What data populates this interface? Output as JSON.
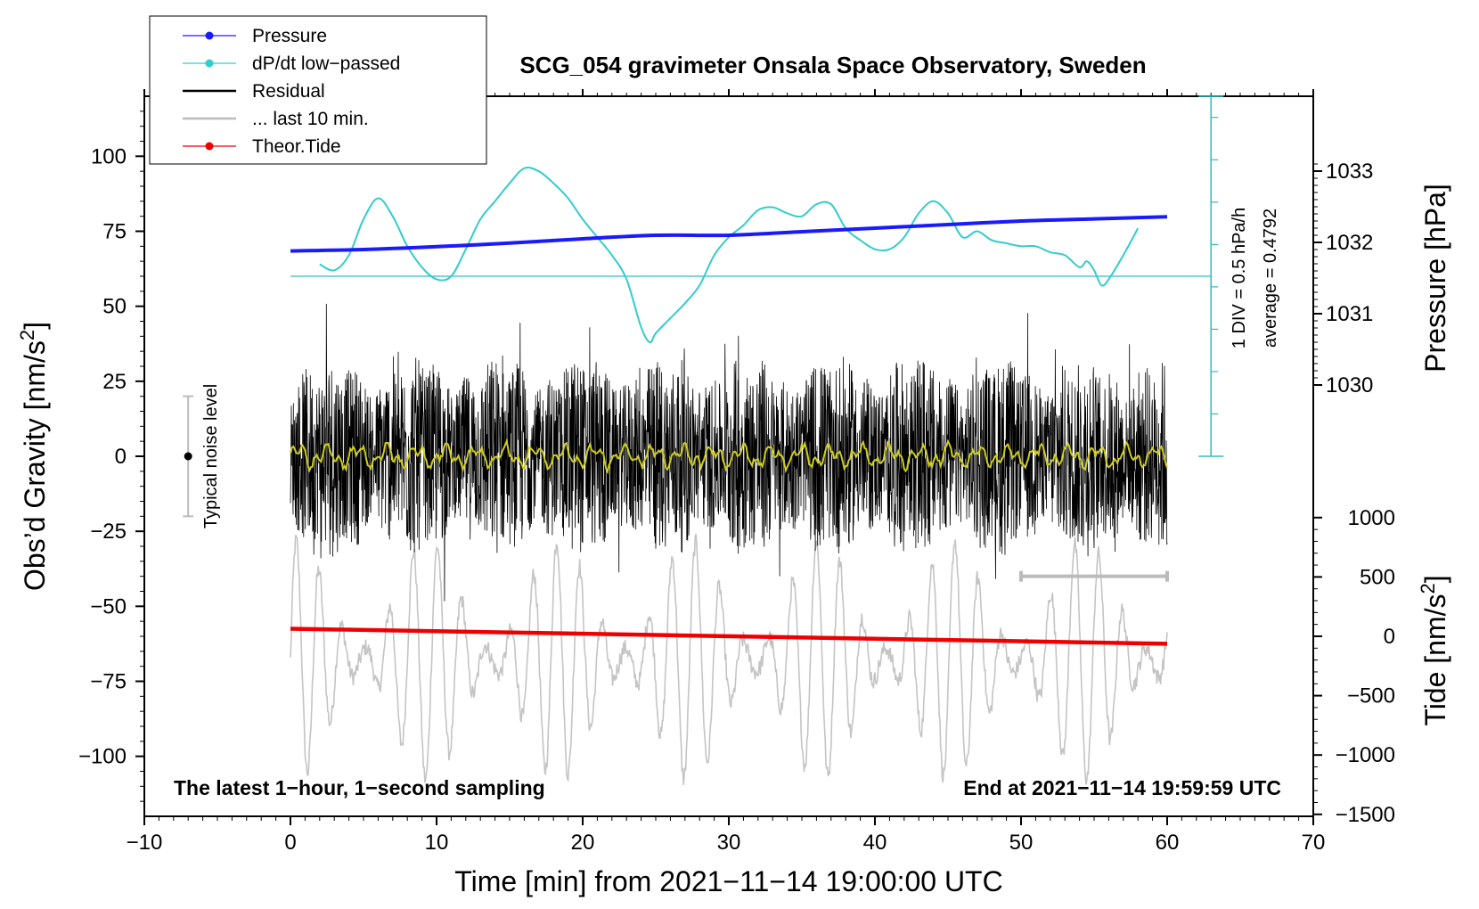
{
  "chart_data": {
    "type": "line",
    "title": "SCG_054 gravimeter Onsala Space Observatory, Sweden",
    "xlabel": "Time [min] from 2021−11−14 19:00:00 UTC",
    "ylabel_left": "Obs’d Gravity [nm/s",
    "ylabel_left_sup": "2",
    "ylabel_left_end": "]",
    "ylabel_right_pressure": "Pressure [hPa]",
    "ylabel_right_tide": "Tide [nm/s",
    "ylabel_right_tide_sup": "2",
    "ylabel_right_tide_end": "]",
    "xlim": [
      -10,
      70
    ],
    "ylim": [
      -120,
      120
    ],
    "xticks": [
      -10,
      0,
      10,
      20,
      30,
      40,
      50,
      60,
      70
    ],
    "xtick_labels": [
      "−10",
      "0",
      "10",
      "20",
      "30",
      "40",
      "50",
      "60",
      "70"
    ],
    "yticks": [
      100,
      75,
      50,
      25,
      0,
      -25,
      -50,
      -75,
      -100
    ],
    "ytick_labels": [
      "100",
      "75",
      "50",
      "25",
      "0",
      "−25",
      "−50",
      "−75",
      "−100"
    ],
    "pressure_ticks": [
      1033,
      1032,
      1031,
      1030
    ],
    "pressure_tick_labels": [
      "1033",
      "1032",
      "1031",
      "1030"
    ],
    "tide_ticks": [
      1000,
      500,
      0,
      -500,
      -1000,
      -1500
    ],
    "tide_tick_labels": [
      "1000",
      "500",
      "0",
      "−500",
      "−1000",
      "−1500"
    ],
    "legend": [
      {
        "label": "Pressure",
        "color": "#1a1aff",
        "marker": true
      },
      {
        "label": "dP/dt low−passed",
        "color": "#33cccc",
        "marker": true
      },
      {
        "label": "Residual",
        "color": "#000000",
        "marker": false
      },
      {
        "label": "... last 10 min.",
        "color": "#bbbbbb",
        "marker": false
      },
      {
        "label": "Theor.Tide",
        "color": "#ee0000",
        "marker": true
      }
    ],
    "series": [
      {
        "name": "Pressure",
        "units": "hPa",
        "x": [
          0,
          5,
          10,
          15,
          20,
          25,
          30,
          35,
          40,
          45,
          50,
          55,
          60
        ],
        "values": [
          1031.88,
          1031.9,
          1031.94,
          1031.99,
          1032.05,
          1032.1,
          1032.1,
          1032.15,
          1032.2,
          1032.25,
          1032.3,
          1032.33,
          1032.36
        ]
      },
      {
        "name": "dP/dt low-passed",
        "units": "gravity-axis nm/s²",
        "x": [
          2,
          3,
          4,
          5,
          6,
          7,
          8,
          9,
          10,
          11,
          12,
          13,
          14,
          15,
          16,
          17,
          18,
          19,
          20,
          21,
          22,
          23,
          24,
          24.6,
          25,
          26,
          27,
          28,
          29,
          30,
          31,
          32,
          33,
          34,
          35,
          36,
          37,
          38,
          39,
          40,
          41,
          42,
          43,
          44,
          45,
          46,
          47,
          48,
          49,
          50,
          51,
          52,
          53,
          54,
          54.5,
          55,
          55.5,
          56,
          57,
          58
        ],
        "values": [
          64,
          62,
          67,
          79,
          86,
          80,
          70,
          63,
          59,
          60,
          69,
          79,
          85,
          91,
          96,
          95,
          91,
          86,
          79,
          73,
          67,
          59,
          43,
          38,
          41,
          46,
          51,
          57,
          67,
          73,
          77,
          82,
          83,
          81,
          80,
          84,
          84,
          76,
          72,
          69,
          69,
          73,
          81,
          85,
          81,
          73,
          75,
          72,
          71,
          70,
          70,
          68,
          67,
          63,
          65,
          62,
          57,
          59,
          67,
          76
        ]
      },
      {
        "name": "dP/dt reference line",
        "units": "gravity-axis nm/s²",
        "x": [
          0,
          63
        ],
        "values": [
          60,
          60
        ]
      },
      {
        "name": "Residual",
        "units": "nm/s²",
        "x_range": [
          0,
          60
        ],
        "amplitude_max": 60,
        "typical_amplitude": 25
      },
      {
        "name": "Residual low-passed (yellow)",
        "units": "nm/s²",
        "x_range": [
          0,
          60
        ],
        "values_approx": 0
      },
      {
        "name": "... last 10 min.",
        "units": "nm/s²",
        "x_range": [
          0,
          60
        ],
        "center": -68,
        "amplitude": 40
      },
      {
        "name": "Theor.Tide",
        "units": "nm/s² (tide axis)",
        "x": [
          0,
          60
        ],
        "values": [
          64,
          -63
        ]
      }
    ],
    "dpdt_scale": {
      "div_label": "1 DIV = 0.5 hPa/h",
      "average_label": "average = 0.4792"
    },
    "noise_level": {
      "label": "Typical noise level",
      "x": -7,
      "center": 0,
      "range": [
        -20,
        20
      ]
    },
    "last10_bar": {
      "x": [
        50,
        60
      ],
      "y": -40
    },
    "notes": {
      "left": "The latest 1−hour, 1−second sampling",
      "right": "End at 2021−11−14 19:59:59 UTC"
    }
  }
}
